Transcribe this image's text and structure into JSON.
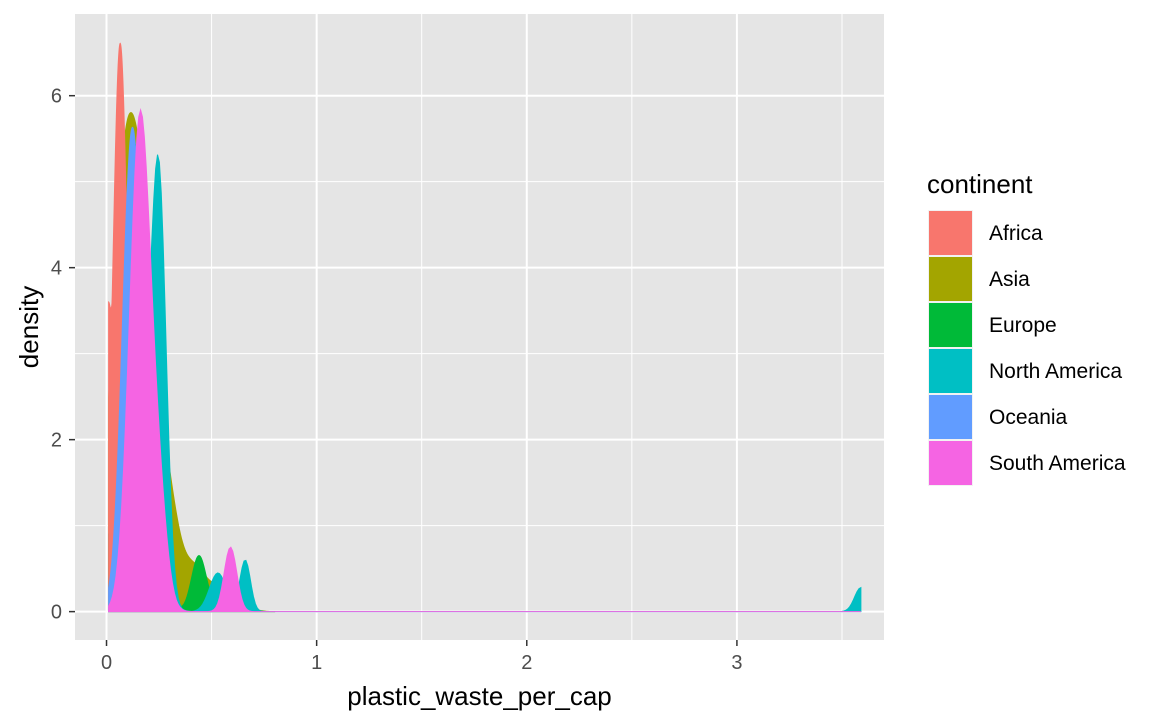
{
  "chart_data": {
    "type": "area",
    "subtype": "density",
    "title": "",
    "xlabel": "plastic_waste_per_cap",
    "ylabel": "density",
    "xlim": [
      -0.15,
      3.7
    ],
    "ylim": [
      -0.33,
      6.95
    ],
    "x_ticks": [
      0,
      1,
      2,
      3
    ],
    "x_tick_labels": [
      "0",
      "1",
      "2",
      "3"
    ],
    "y_ticks": [
      0,
      2,
      4,
      6
    ],
    "y_tick_labels": [
      "0",
      "2",
      "4",
      "6"
    ],
    "x_minor_ticks": [
      0.5,
      1.5,
      2.5,
      3.5
    ],
    "y_minor_ticks": [
      1,
      3,
      5
    ],
    "grid": true,
    "panel_background": "#e5e5e5",
    "grid_color": "#ffffff",
    "legend_title": "continent",
    "legend_position": "right",
    "series": [
      {
        "name": "Asia",
        "color": "#a3a500",
        "x_range": [
          0.01,
          0.8
        ],
        "start_value": 1.5,
        "bumps": [
          [
            0.07,
            0.06,
            3.6
          ],
          [
            0.17,
            0.07,
            4.2
          ],
          [
            0.3,
            0.05,
            0.85
          ],
          [
            0.42,
            0.06,
            0.5
          ],
          [
            0.58,
            0.06,
            0.35
          ]
        ]
      },
      {
        "name": "Europe",
        "color": "#00ba38",
        "x_range": [
          0.01,
          0.8
        ],
        "start_value": 0.9,
        "bumps": [
          [
            0.12,
            0.05,
            4.3
          ],
          [
            0.2,
            0.05,
            3.0
          ],
          [
            0.44,
            0.035,
            0.65
          ],
          [
            0.6,
            0.05,
            0.3
          ]
        ]
      },
      {
        "name": "North America",
        "color": "#00bfc4",
        "x_range": [
          0.01,
          3.59
        ],
        "start_value": 0.05,
        "bumps": [
          [
            0.25,
            0.035,
            4.65
          ],
          [
            0.17,
            0.05,
            2.2
          ],
          [
            0.53,
            0.04,
            0.45
          ],
          [
            0.66,
            0.025,
            0.6
          ],
          [
            3.59,
            0.03,
            0.28
          ]
        ]
      },
      {
        "name": "Africa",
        "color": "#f8766d",
        "x_range": [
          0.01,
          0.5
        ],
        "start_value": 3.6,
        "bumps": [
          [
            0.065,
            0.035,
            6.6
          ],
          [
            0.22,
            0.05,
            1.0
          ]
        ]
      },
      {
        "name": "Oceania",
        "color": "#619cff",
        "x_range": [
          0.01,
          0.5
        ],
        "start_value": 0.15,
        "bumps": [
          [
            0.12,
            0.045,
            5.4
          ],
          [
            0.22,
            0.05,
            1.6
          ]
        ]
      },
      {
        "name": "South America",
        "color": "#f564e3",
        "x_range": [
          0.01,
          3.59
        ],
        "start_value": 0.0,
        "bumps": [
          [
            0.16,
            0.05,
            5.75
          ],
          [
            0.25,
            0.04,
            1.0
          ],
          [
            0.59,
            0.03,
            0.75
          ]
        ]
      }
    ],
    "legend": [
      {
        "name": "Africa",
        "color": "#f8766d"
      },
      {
        "name": "Asia",
        "color": "#a3a500"
      },
      {
        "name": "Europe",
        "color": "#00ba38"
      },
      {
        "name": "North America",
        "color": "#00bfc4"
      },
      {
        "name": "Oceania",
        "color": "#619cff"
      },
      {
        "name": "South America",
        "color": "#f564e3"
      }
    ]
  }
}
